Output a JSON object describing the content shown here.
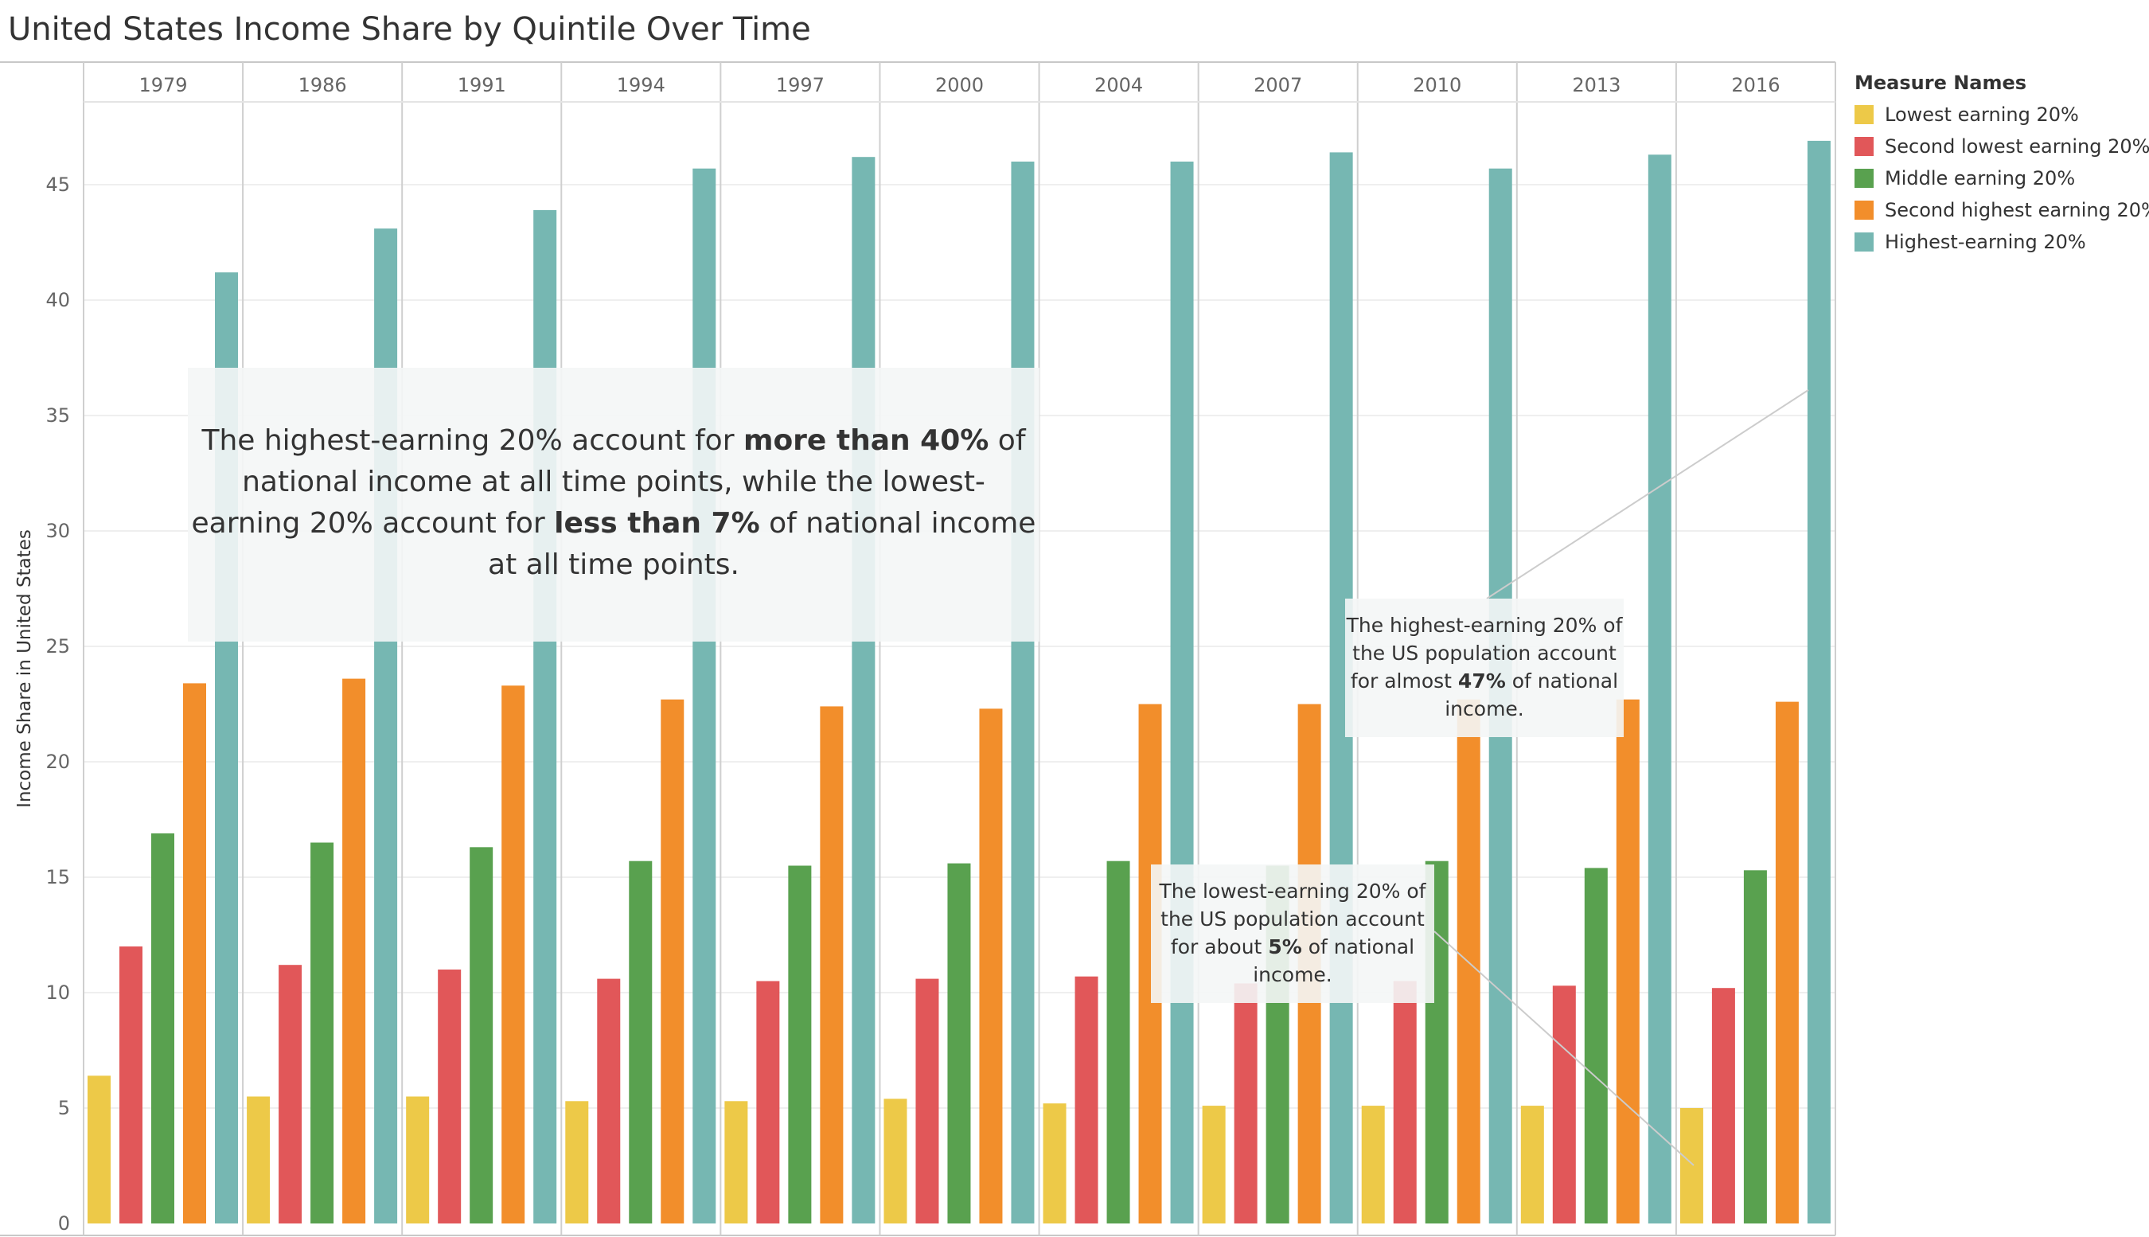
{
  "chart_data": {
    "type": "bar",
    "title": "United States Income Share by Quintile Over Time",
    "ylabel": "Income Share in United States",
    "xlabel": "",
    "ylim": [
      0,
      48
    ],
    "yticks": [
      "0",
      "5",
      "10",
      "15",
      "20",
      "25",
      "30",
      "35",
      "40",
      "45"
    ],
    "categories": [
      "1979",
      "1986",
      "1991",
      "1994",
      "1997",
      "2000",
      "2004",
      "2007",
      "2010",
      "2013",
      "2016"
    ],
    "legend_title": "Measure Names",
    "legend_position": "right",
    "series": [
      {
        "name": "Lowest earning 20%",
        "color": "#EDC948",
        "values": [
          6.4,
          5.5,
          5.5,
          5.3,
          5.3,
          5.4,
          5.2,
          5.1,
          5.1,
          5.1,
          5.0
        ]
      },
      {
        "name": "Second lowest earning 20%",
        "color": "#E15759",
        "values": [
          12.0,
          11.2,
          11.0,
          10.6,
          10.5,
          10.6,
          10.7,
          10.4,
          10.5,
          10.3,
          10.2
        ]
      },
      {
        "name": "Middle earning 20%",
        "color": "#59A14F",
        "values": [
          16.9,
          16.5,
          16.3,
          15.7,
          15.5,
          15.6,
          15.7,
          15.5,
          15.7,
          15.4,
          15.3
        ]
      },
      {
        "name": "Second highest earning 20%",
        "color": "#F28E2B",
        "values": [
          23.4,
          23.6,
          23.3,
          22.7,
          22.4,
          22.3,
          22.5,
          22.5,
          22.7,
          22.7,
          22.6
        ]
      },
      {
        "name": "Highest-earning 20%",
        "color": "#76B7B2",
        "values": [
          41.2,
          43.1,
          43.9,
          45.7,
          46.2,
          46.0,
          46.0,
          46.4,
          45.7,
          46.3,
          46.9
        ]
      }
    ],
    "annotations": {
      "main": {
        "p1": "The highest-earning 20% account for ",
        "b1": "more than 40%",
        "p2": " of national income at all time points, while the lowest-earning 20% account for ",
        "b2": "less than 7%",
        "p3": " of national income at all time points."
      },
      "high": {
        "p1": "The highest-earning 20% of the US population account for almost ",
        "b1": "47%",
        "p2": " of national income."
      },
      "low": {
        "p1": "The lowest-earning 20% of the US population account for about ",
        "b1": "5%",
        "p2": " of national income."
      }
    }
  }
}
